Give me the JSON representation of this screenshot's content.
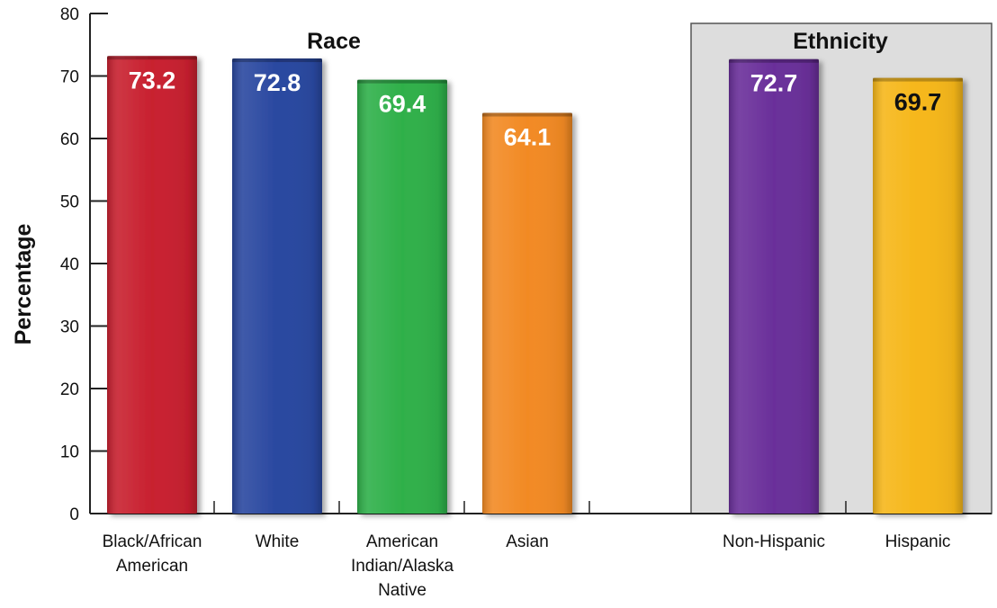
{
  "chart_data": {
    "type": "bar",
    "ylabel": "Percentage",
    "ylim": [
      0,
      80
    ],
    "yticks": [
      "0",
      "10",
      "20",
      "30",
      "40",
      "50",
      "60",
      "70",
      "80"
    ],
    "groups": [
      {
        "title": "Race",
        "shaded": false,
        "bars": [
          {
            "category": [
              "Black/African",
              "American"
            ],
            "value": 73.2,
            "label": "73.2",
            "color": "#c8202f",
            "label_color": "#ffffff"
          },
          {
            "category": [
              "White"
            ],
            "value": 72.8,
            "label": "72.8",
            "color": "#2a48a0",
            "label_color": "#ffffff"
          },
          {
            "category": [
              "American",
              "Indian/Alaska",
              "Native"
            ],
            "value": 69.4,
            "label": "69.4",
            "color": "#2fb04a",
            "label_color": "#ffffff"
          },
          {
            "category": [
              "Asian"
            ],
            "value": 64.1,
            "label": "64.1",
            "color": "#f28a24",
            "label_color": "#ffffff"
          }
        ]
      },
      {
        "title": "Ethnicity",
        "shaded": true,
        "bars": [
          {
            "category": [
              "Non-Hispanic"
            ],
            "value": 72.7,
            "label": "72.7",
            "color": "#6a2f9a",
            "label_color": "#ffffff"
          },
          {
            "category": [
              "Hispanic"
            ],
            "value": 69.7,
            "label": "69.7",
            "color": "#f6b71a",
            "label_color": "#111111"
          }
        ]
      }
    ],
    "colors": {
      "shade_fill": "#dddddd",
      "axis": "#222222"
    }
  }
}
